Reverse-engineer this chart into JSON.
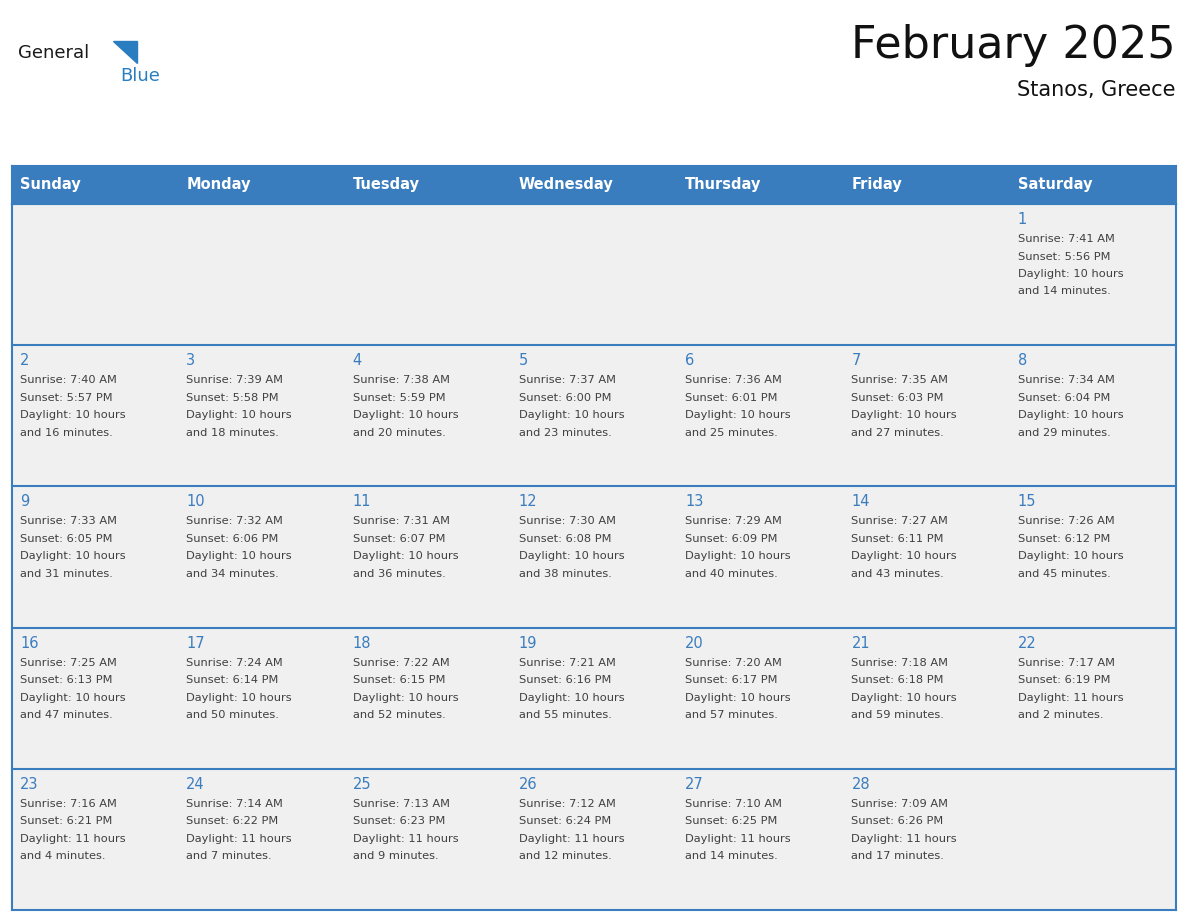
{
  "title": "February 2025",
  "subtitle": "Stanos, Greece",
  "days_of_week": [
    "Sunday",
    "Monday",
    "Tuesday",
    "Wednesday",
    "Thursday",
    "Friday",
    "Saturday"
  ],
  "header_bg": "#3a7dbf",
  "header_text": "#ffffff",
  "cell_bg_odd": "#f0f0f0",
  "cell_bg_even": "#ffffff",
  "cell_border_color": "#3a7dbf",
  "day_number_color": "#3a7dbf",
  "cell_text_color": "#404040",
  "logo_general_color": "#1a1a1a",
  "logo_blue_color": "#2a7dbf",
  "calendar_data": [
    [
      null,
      null,
      null,
      null,
      null,
      null,
      {
        "day": 1,
        "sunrise": "7:41 AM",
        "sunset": "5:56 PM",
        "daylight": "10 hours and 14 minutes"
      }
    ],
    [
      {
        "day": 2,
        "sunrise": "7:40 AM",
        "sunset": "5:57 PM",
        "daylight": "10 hours and 16 minutes"
      },
      {
        "day": 3,
        "sunrise": "7:39 AM",
        "sunset": "5:58 PM",
        "daylight": "10 hours and 18 minutes"
      },
      {
        "day": 4,
        "sunrise": "7:38 AM",
        "sunset": "5:59 PM",
        "daylight": "10 hours and 20 minutes"
      },
      {
        "day": 5,
        "sunrise": "7:37 AM",
        "sunset": "6:00 PM",
        "daylight": "10 hours and 23 minutes"
      },
      {
        "day": 6,
        "sunrise": "7:36 AM",
        "sunset": "6:01 PM",
        "daylight": "10 hours and 25 minutes"
      },
      {
        "day": 7,
        "sunrise": "7:35 AM",
        "sunset": "6:03 PM",
        "daylight": "10 hours and 27 minutes"
      },
      {
        "day": 8,
        "sunrise": "7:34 AM",
        "sunset": "6:04 PM",
        "daylight": "10 hours and 29 minutes"
      }
    ],
    [
      {
        "day": 9,
        "sunrise": "7:33 AM",
        "sunset": "6:05 PM",
        "daylight": "10 hours and 31 minutes"
      },
      {
        "day": 10,
        "sunrise": "7:32 AM",
        "sunset": "6:06 PM",
        "daylight": "10 hours and 34 minutes"
      },
      {
        "day": 11,
        "sunrise": "7:31 AM",
        "sunset": "6:07 PM",
        "daylight": "10 hours and 36 minutes"
      },
      {
        "day": 12,
        "sunrise": "7:30 AM",
        "sunset": "6:08 PM",
        "daylight": "10 hours and 38 minutes"
      },
      {
        "day": 13,
        "sunrise": "7:29 AM",
        "sunset": "6:09 PM",
        "daylight": "10 hours and 40 minutes"
      },
      {
        "day": 14,
        "sunrise": "7:27 AM",
        "sunset": "6:11 PM",
        "daylight": "10 hours and 43 minutes"
      },
      {
        "day": 15,
        "sunrise": "7:26 AM",
        "sunset": "6:12 PM",
        "daylight": "10 hours and 45 minutes"
      }
    ],
    [
      {
        "day": 16,
        "sunrise": "7:25 AM",
        "sunset": "6:13 PM",
        "daylight": "10 hours and 47 minutes"
      },
      {
        "day": 17,
        "sunrise": "7:24 AM",
        "sunset": "6:14 PM",
        "daylight": "10 hours and 50 minutes"
      },
      {
        "day": 18,
        "sunrise": "7:22 AM",
        "sunset": "6:15 PM",
        "daylight": "10 hours and 52 minutes"
      },
      {
        "day": 19,
        "sunrise": "7:21 AM",
        "sunset": "6:16 PM",
        "daylight": "10 hours and 55 minutes"
      },
      {
        "day": 20,
        "sunrise": "7:20 AM",
        "sunset": "6:17 PM",
        "daylight": "10 hours and 57 minutes"
      },
      {
        "day": 21,
        "sunrise": "7:18 AM",
        "sunset": "6:18 PM",
        "daylight": "10 hours and 59 minutes"
      },
      {
        "day": 22,
        "sunrise": "7:17 AM",
        "sunset": "6:19 PM",
        "daylight": "11 hours and 2 minutes"
      }
    ],
    [
      {
        "day": 23,
        "sunrise": "7:16 AM",
        "sunset": "6:21 PM",
        "daylight": "11 hours and 4 minutes"
      },
      {
        "day": 24,
        "sunrise": "7:14 AM",
        "sunset": "6:22 PM",
        "daylight": "11 hours and 7 minutes"
      },
      {
        "day": 25,
        "sunrise": "7:13 AM",
        "sunset": "6:23 PM",
        "daylight": "11 hours and 9 minutes"
      },
      {
        "day": 26,
        "sunrise": "7:12 AM",
        "sunset": "6:24 PM",
        "daylight": "11 hours and 12 minutes"
      },
      {
        "day": 27,
        "sunrise": "7:10 AM",
        "sunset": "6:25 PM",
        "daylight": "11 hours and 14 minutes"
      },
      {
        "day": 28,
        "sunrise": "7:09 AM",
        "sunset": "6:26 PM",
        "daylight": "11 hours and 17 minutes"
      },
      null
    ]
  ]
}
